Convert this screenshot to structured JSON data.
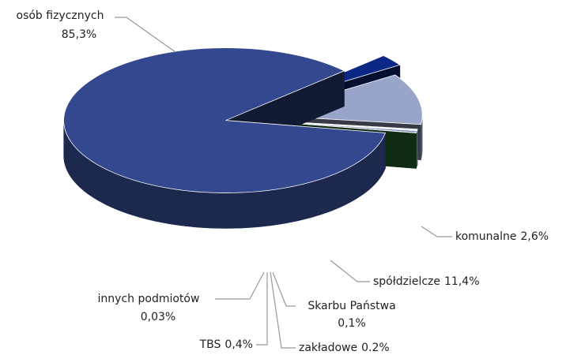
{
  "chart_data": {
    "type": "pie3d",
    "categories": [
      "osób fizycznych",
      "komunalne",
      "spółdzielcze",
      "Skarbu Państwa",
      "zakładowe",
      "TBS",
      "innych podmiotów"
    ],
    "values": [
      85.3,
      2.6,
      11.4,
      0.1,
      0.2,
      0.4,
      0.03
    ],
    "value_labels": [
      "85,3%",
      "2,6%",
      "11,4%",
      "0,1%",
      "0.2%",
      "0,4%",
      "0,03%"
    ],
    "colors": [
      "#34488f",
      "#0b2785",
      "#98a5c9",
      "#c9d0ea",
      "#b8c2e4",
      "#6f80bd",
      "#2f7a3a"
    ]
  }
}
